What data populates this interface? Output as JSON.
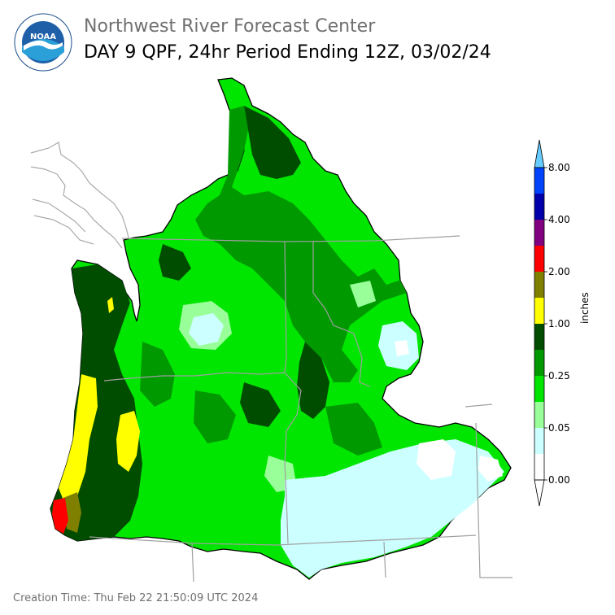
{
  "header": {
    "org": "Northwest River Forecast Center",
    "title": "DAY 9 QPF, 24hr Period Ending 12Z, 03/02/24",
    "logo_text": "NOAA"
  },
  "legend": {
    "units": "inches",
    "ticks": [
      "0.00",
      "0.05",
      "0.25",
      "1.00",
      "2.00",
      "4.00",
      "8.00"
    ],
    "colors": [
      "#ffffff",
      "#ccffff",
      "#99ff99",
      "#00e600",
      "#009900",
      "#004d00",
      "#ffff00",
      "#808000",
      "#ff0000",
      "#800080",
      "#0000aa",
      "#0044ff",
      "#66ccff"
    ]
  },
  "footer": {
    "creation": "Creation Time: Thu Feb 22 21:50:09 UTC 2024"
  }
}
